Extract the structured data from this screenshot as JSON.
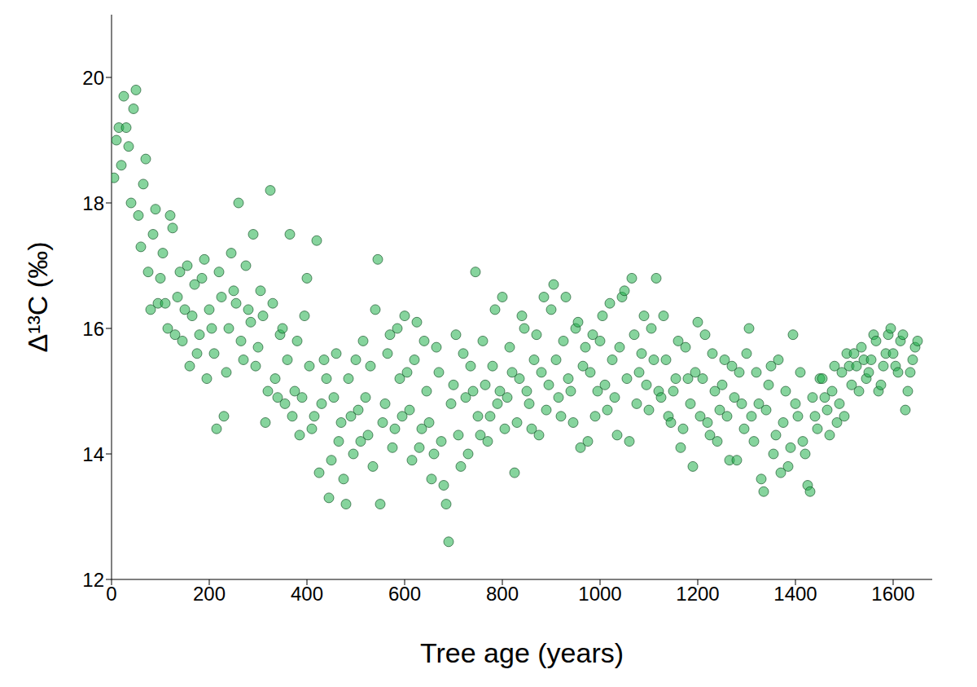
{
  "chart_data": {
    "type": "scatter",
    "x_label": "Tree age (years)",
    "y_label": "Δ¹³C (‰)",
    "color": "#22b14c",
    "marker": "circle",
    "grid": false,
    "xlim": [
      0,
      1680
    ],
    "xticks": [
      0,
      200,
      400,
      600,
      800,
      1000,
      1200,
      1400,
      1600
    ],
    "ylim": [
      12,
      21
    ],
    "yticks": [
      12,
      14,
      16,
      18,
      20
    ],
    "x": [
      5,
      10,
      15,
      20,
      25,
      30,
      35,
      40,
      45,
      50,
      55,
      60,
      65,
      70,
      75,
      80,
      85,
      90,
      95,
      100,
      105,
      110,
      115,
      120,
      125,
      130,
      135,
      140,
      145,
      150,
      155,
      160,
      165,
      170,
      175,
      180,
      185,
      190,
      195,
      200,
      205,
      210,
      215,
      220,
      225,
      230,
      235,
      240,
      245,
      250,
      255,
      260,
      265,
      270,
      275,
      280,
      285,
      290,
      295,
      300,
      305,
      310,
      315,
      320,
      325,
      330,
      335,
      340,
      345,
      350,
      355,
      360,
      365,
      370,
      375,
      380,
      385,
      390,
      395,
      400,
      405,
      410,
      415,
      420,
      425,
      430,
      435,
      440,
      445,
      450,
      455,
      460,
      465,
      470,
      475,
      480,
      485,
      490,
      495,
      500,
      505,
      510,
      515,
      520,
      525,
      530,
      535,
      540,
      545,
      550,
      555,
      560,
      565,
      570,
      575,
      580,
      585,
      590,
      595,
      600,
      605,
      610,
      615,
      620,
      625,
      630,
      635,
      640,
      645,
      650,
      655,
      660,
      665,
      670,
      675,
      680,
      685,
      690,
      695,
      700,
      705,
      710,
      715,
      720,
      725,
      730,
      735,
      740,
      745,
      750,
      755,
      760,
      765,
      770,
      775,
      780,
      785,
      790,
      795,
      800,
      805,
      810,
      815,
      820,
      825,
      830,
      835,
      840,
      845,
      850,
      855,
      860,
      865,
      870,
      875,
      880,
      885,
      890,
      895,
      900,
      905,
      910,
      915,
      920,
      925,
      930,
      935,
      940,
      945,
      950,
      955,
      960,
      965,
      970,
      975,
      980,
      985,
      990,
      995,
      1000,
      1005,
      1010,
      1015,
      1020,
      1025,
      1030,
      1035,
      1040,
      1045,
      1050,
      1055,
      1060,
      1065,
      1070,
      1075,
      1080,
      1085,
      1090,
      1095,
      1100,
      1105,
      1110,
      1115,
      1120,
      1125,
      1130,
      1135,
      1140,
      1145,
      1150,
      1155,
      1160,
      1165,
      1170,
      1175,
      1180,
      1185,
      1190,
      1195,
      1200,
      1205,
      1210,
      1215,
      1220,
      1225,
      1230,
      1235,
      1240,
      1245,
      1250,
      1255,
      1260,
      1265,
      1270,
      1275,
      1280,
      1285,
      1290,
      1295,
      1300,
      1305,
      1310,
      1315,
      1320,
      1325,
      1330,
      1335,
      1340,
      1345,
      1350,
      1355,
      1360,
      1365,
      1370,
      1375,
      1380,
      1385,
      1390,
      1395,
      1400,
      1405,
      1410,
      1415,
      1420,
      1425,
      1430,
      1435,
      1440,
      1445,
      1450,
      1455,
      1460,
      1465,
      1470,
      1475,
      1480,
      1485,
      1490,
      1495,
      1500,
      1505,
      1510,
      1515,
      1520,
      1525,
      1530,
      1535,
      1540,
      1545,
      1550,
      1555,
      1560,
      1565,
      1570,
      1575,
      1580,
      1585,
      1590,
      1595,
      1600,
      1605,
      1610,
      1615,
      1620,
      1625,
      1630,
      1635,
      1640,
      1645,
      1650
    ],
    "values": [
      18.4,
      19.0,
      19.2,
      18.6,
      19.7,
      19.2,
      18.9,
      18.0,
      19.5,
      19.8,
      17.8,
      17.3,
      18.3,
      18.7,
      16.9,
      16.3,
      17.5,
      17.9,
      16.4,
      16.8,
      17.2,
      16.4,
      16.0,
      17.8,
      17.6,
      15.9,
      16.5,
      16.9,
      15.8,
      16.3,
      17.0,
      15.4,
      16.2,
      16.7,
      15.6,
      15.9,
      16.8,
      17.1,
      15.2,
      16.3,
      16.0,
      15.6,
      14.4,
      16.9,
      16.5,
      14.6,
      15.3,
      16.0,
      17.2,
      16.6,
      16.4,
      18.0,
      15.8,
      15.5,
      17.0,
      16.3,
      16.1,
      17.5,
      15.4,
      15.7,
      16.6,
      16.2,
      14.5,
      15.0,
      18.2,
      16.4,
      15.2,
      14.9,
      15.9,
      16.0,
      14.8,
      15.5,
      17.5,
      14.6,
      15.0,
      15.8,
      14.3,
      14.9,
      16.2,
      16.8,
      15.4,
      14.4,
      14.6,
      17.4,
      13.7,
      14.8,
      15.5,
      15.2,
      13.3,
      13.9,
      14.9,
      15.6,
      14.2,
      14.5,
      13.6,
      13.2,
      15.2,
      14.6,
      14.0,
      15.5,
      14.7,
      14.2,
      15.8,
      14.9,
      14.3,
      15.4,
      13.8,
      16.3,
      17.1,
      13.2,
      14.5,
      14.8,
      15.6,
      15.9,
      14.1,
      14.4,
      16.0,
      15.2,
      14.6,
      16.2,
      15.3,
      14.7,
      13.9,
      15.5,
      16.1,
      14.1,
      14.4,
      15.8,
      15.0,
      14.5,
      13.6,
      14.0,
      15.7,
      15.3,
      14.2,
      13.5,
      13.2,
      12.6,
      14.8,
      15.1,
      15.9,
      14.3,
      13.8,
      15.6,
      14.9,
      14.0,
      15.4,
      15.0,
      16.9,
      14.6,
      14.3,
      15.8,
      15.1,
      14.2,
      14.6,
      15.4,
      16.3,
      14.8,
      15.0,
      16.5,
      14.4,
      14.9,
      15.7,
      15.3,
      13.7,
      14.5,
      15.2,
      16.2,
      16.0,
      15.0,
      14.8,
      14.4,
      15.5,
      15.9,
      14.3,
      15.3,
      16.5,
      14.7,
      15.1,
      16.3,
      16.7,
      15.5,
      14.9,
      14.6,
      15.8,
      16.5,
      15.2,
      15.0,
      14.5,
      16.0,
      16.1,
      14.1,
      15.4,
      15.7,
      14.2,
      15.3,
      15.9,
      14.6,
      15.0,
      15.8,
      16.2,
      15.1,
      14.7,
      16.4,
      15.5,
      14.9,
      14.3,
      15.7,
      16.5,
      16.6,
      15.2,
      14.2,
      16.8,
      15.9,
      14.8,
      15.3,
      15.6,
      16.2,
      15.1,
      14.7,
      16.0,
      15.5,
      16.8,
      15.0,
      14.9,
      16.2,
      15.5,
      14.6,
      14.5,
      15.0,
      15.2,
      15.8,
      14.1,
      14.4,
      15.7,
      15.2,
      14.8,
      13.8,
      15.3,
      16.1,
      14.6,
      15.2,
      15.9,
      14.5,
      14.3,
      15.6,
      15.0,
      14.2,
      14.7,
      15.1,
      15.5,
      14.6,
      13.9,
      15.4,
      14.9,
      13.9,
      15.3,
      14.8,
      14.4,
      15.6,
      16.0,
      14.6,
      14.2,
      15.3,
      14.8,
      13.6,
      13.4,
      14.7,
      15.1,
      15.4,
      14.0,
      14.3,
      15.5,
      13.7,
      14.5,
      15.0,
      13.8,
      14.1,
      15.9,
      14.8,
      14.6,
      15.3,
      14.2,
      14.0,
      13.5,
      13.4,
      14.9,
      14.6,
      14.4,
      15.2,
      15.2,
      14.9,
      14.7,
      14.3,
      15.0,
      15.4,
      14.5,
      14.8,
      15.3,
      14.6,
      15.6,
      15.4,
      15.1,
      15.6,
      15.4,
      15.0,
      15.7,
      15.5,
      15.2,
      15.3,
      15.5,
      15.9,
      15.8,
      15.0,
      15.1,
      15.4,
      15.6,
      15.9,
      16.0,
      15.6,
      15.4,
      15.3,
      15.8,
      15.9,
      14.7,
      15.0,
      15.3,
      15.5,
      15.7,
      15.8
    ]
  }
}
